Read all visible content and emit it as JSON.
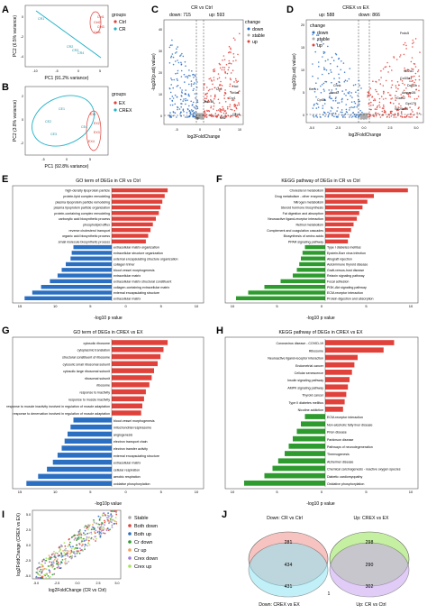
{
  "labels": {
    "A": "A",
    "B": "B",
    "C": "C",
    "D": "D",
    "E": "E",
    "F": "F",
    "G": "G",
    "H": "H",
    "I": "I",
    "J": "J"
  },
  "colors": {
    "red": "#e0413a",
    "blue": "#2b6fc2",
    "teal": "#20b2c8",
    "green": "#2e9b2e",
    "pink": "#f0b0b0",
    "cyan": "#7fe0f0",
    "lime": "#a6e25b",
    "purple": "#a07adf",
    "orange": "#f5a25a"
  },
  "pca_a": {
    "xlabel": "PC1 (91.2% variance)",
    "ylabel": "PC2 (6.5% variance)",
    "xticks": [
      "-10",
      "-5",
      "0",
      "5"
    ],
    "yticks": [
      "0",
      "-2",
      "-4"
    ],
    "legend_title": "groups",
    "legend": [
      "Ctrl",
      "CR"
    ],
    "points": [
      "Ctrl1",
      "Ctrl2",
      "Ctrl3",
      "Ctrl4",
      "CR1",
      "CR2",
      "CR3",
      "CR4"
    ]
  },
  "pca_b": {
    "xlabel": "PC1 (92.8% variance)",
    "ylabel": "PC2 (3.8% variance)",
    "xticks": [
      "-5",
      "0",
      "5"
    ],
    "yticks": [
      "2",
      "0",
      "-2"
    ],
    "legend_title": "groups",
    "legend": [
      "EX",
      "CREX"
    ],
    "points": [
      "CE1",
      "CE2",
      "CE3",
      "CE4",
      "EX1",
      "EX2",
      "EX3",
      "EX4"
    ]
  },
  "volcano_c": {
    "title_main": "CR",
    "title_vs": "vs",
    "title_ctrl": "Ctrl",
    "up_label": "up: 593",
    "down_label": "down: 715",
    "legend_title": "change",
    "legend": [
      "down",
      "stable",
      "up"
    ],
    "xlabel": "log2FoldChange",
    "ylabel": "-log10(p.adj value)",
    "xticks": [
      "-5",
      "0",
      "5",
      "10"
    ],
    "yticks": [
      "0",
      "10",
      "20",
      "30",
      "40"
    ],
    "genes": [
      "Hcd",
      "Nr4a1",
      "Cry1",
      "Upc",
      "Zbtb16",
      "Ptp",
      "Ms1",
      "Clrn1"
    ]
  },
  "volcano_d": {
    "title_main": "CREX",
    "title_vs": "vs",
    "title_ex": "EX",
    "up_label": "up: 588",
    "down_label": "down: 866",
    "legend_title": "change",
    "legend": [
      "down",
      "stable",
      "up"
    ],
    "xlabel": "log2FoldChange",
    "ylabel": "-log10(p.adj value)",
    "xticks": [
      "-5.0",
      "-2.5",
      "0.0",
      "2.5",
      "5.0"
    ],
    "yticks": [
      "0",
      "5",
      "10",
      "15",
      "20"
    ],
    "genes": [
      "Fndc5",
      "Kera",
      "Slc2a1",
      "Col15a1",
      "Dclk2b",
      "Abcd2",
      "Chnk",
      "Amgap26",
      "Cpt1a",
      "Gabr2",
      "Gpr179",
      "Slc25a35"
    ]
  },
  "go_e": {
    "title": "GO term of DEGs in CR vs Ctrl",
    "up_terms": [
      "high-density lipoprotein particle",
      "protein-lipid complex remodeling",
      "plasma lipoprotein particle remodeling",
      "plasma lipoprotein particle organization",
      "protein-containing complex remodeling",
      "carboxylic acid biosynthetic process",
      "phospholipid efflux",
      "reverse cholesterol transport",
      "organic acid biosynthetic process",
      "small molecule biosynthetic process"
    ],
    "up_values": [
      9.5,
      9.0,
      8.6,
      8.3,
      8.0,
      7.5,
      7.0,
      6.6,
      6.2,
      5.8
    ],
    "down_terms": [
      "extracellular matrix organization",
      "extracellular structure organization",
      "external encapsulating structure organization",
      "collagen trimer",
      "blood vessel morphogenesis",
      "extracellular matrix",
      "extracellular matrix structural constituent",
      "collagen-containing extracellular matrix",
      "external encapsulating structure",
      "extracellular matrix"
    ],
    "down_values": [
      6.5,
      6.8,
      7.0,
      7.8,
      8.5,
      9.2,
      10.5,
      12.0,
      13.5,
      14.8
    ],
    "xlabel": "-log10 p value",
    "xticks": [
      "15",
      "10",
      "5",
      "0",
      "5",
      "10"
    ]
  },
  "kegg_f": {
    "title": "KEGG pathway of DEGs in CR vs Ctrl",
    "up_terms": [
      "Cholesterol metabolism",
      "Drug metabolism - other enzymes",
      "Nitrogen metabolism",
      "Steroid hormone biosynthesis",
      "Fat digestion and absorption",
      "Neuroactive ligand-receptor interaction",
      "Retinol metabolism",
      "Complement and coagulation cascades",
      "Biosynthesis of amino acids",
      "PPAR signaling pathway"
    ],
    "up_values": [
      10.2,
      6.0,
      5.2,
      4.6,
      4.2,
      3.9,
      3.5,
      3.2,
      3.0,
      2.8
    ],
    "down_terms": [
      "Type I diabetes mellitus",
      "Epstein-Barr virus infection",
      "Allograft rejection",
      "Autoimmune thyroid disease",
      "Graft-versus-host disease",
      "Relaxin signaling pathway",
      "Focal adhesion",
      "PI3K-Akt signaling pathway",
      "ECM-receptor interaction",
      "Protein digestion and absorption"
    ],
    "down_values": [
      2.5,
      2.8,
      3.0,
      3.2,
      3.5,
      4.0,
      5.5,
      7.5,
      9.5,
      11.0
    ],
    "xlabel": "-log10 p value",
    "xticks": [
      "10",
      "5",
      "0",
      "5",
      "10"
    ]
  },
  "go_g": {
    "title": "GO term of DEGs in CREX vs EX",
    "up_terms": [
      "cytosolic ribosome",
      "cytoplasmic translation",
      "structural constituent of ribosome",
      "cytosolic small ribosomal subunit",
      "cytosolic large ribosomal subunit",
      "ribosomal subunit",
      "ribosome",
      "response to inactivity",
      "response to muscle inactivity",
      "response to muscle inactivity involved in regulation of muscle adaptation",
      "response to denervation involved in regulation of muscle adaptation"
    ],
    "up_values": [
      9.5,
      8.8,
      8.3,
      7.8,
      7.2,
      6.8,
      6.4,
      5.8,
      5.5,
      5.2,
      5.0
    ],
    "down_terms": [
      "blood vessel morphogenesis",
      "mitochondrial respirasome",
      "angiogenesis",
      "electron transport chain",
      "electron transfer activity",
      "external encapsulating structure",
      "extracellular matrix",
      "cellular respiration",
      "aerobic respiration",
      "oxidative phosphorylation"
    ],
    "down_values": [
      6.5,
      7.0,
      7.5,
      8.0,
      8.5,
      9.2,
      10.0,
      11.0,
      12.5,
      14.5
    ],
    "xlabel": "-log10p value",
    "xticks": [
      "15",
      "10",
      "5",
      "0",
      "5",
      "10"
    ]
  },
  "kegg_h": {
    "title": "KEGG pathway of DEGs in CREX vs EX",
    "up_terms": [
      "Coronavirus disease - COVID-19",
      "Ribosome",
      "Neuroactive ligand-receptor interaction",
      "Endometrial cancer",
      "Cellular senescence",
      "Insulin signaling pathway",
      "AMPK signaling pathway",
      "Thyroid cancer",
      "Type II diabetes mellitus",
      "Nicotine addiction"
    ],
    "up_values": [
      8.5,
      7.2,
      4.0,
      3.6,
      3.3,
      3.0,
      2.8,
      2.6,
      2.4,
      2.2
    ],
    "down_terms": [
      "ECM-receptor interaction",
      "Non-alcoholic fatty liver disease",
      "Prion disease",
      "Parkinson disease",
      "Pathways of neurodegeneration",
      "Thermogenesis",
      "Alzheimer disease",
      "Chemical carcinogenesis - reactive oxygen species",
      "Diabetic cardiomyopathy",
      "Oxidative phosphorylation"
    ],
    "down_values": [
      2.5,
      3.0,
      3.5,
      4.0,
      4.5,
      5.0,
      5.8,
      6.5,
      7.5,
      10.0
    ],
    "xlabel": "-log10 p value",
    "xticks": [
      "10",
      "5",
      "0",
      "5",
      "10"
    ]
  },
  "scatter_i": {
    "xlabel": "log2FoldChange (CR vs Ctrl)",
    "ylabel": "log2FoldChange (CREX vs EX)",
    "xticks": [
      "-5.0",
      "-2.5",
      "0.0",
      "2.5",
      "5.0"
    ],
    "yticks": [
      "5.0",
      "2.5",
      "0.0",
      "-2.5",
      "-5.0"
    ],
    "legend": [
      "Stable",
      "Both down",
      "Both up",
      "Cr down",
      "Cr up",
      "Crex down",
      "Crex up"
    ]
  },
  "venn_j": {
    "top_left": "Down: CR vs Ctrl",
    "top_right": "Up: CREX vs EX",
    "bottom_left": "Down: CREX vs EX",
    "bottom_right": "Up: CR vs Ctrl",
    "numbers": {
      "n281": "281",
      "n434": "434",
      "n431": "431",
      "n298": "298",
      "n290": "290",
      "n302": "302",
      "n1": "1"
    }
  }
}
